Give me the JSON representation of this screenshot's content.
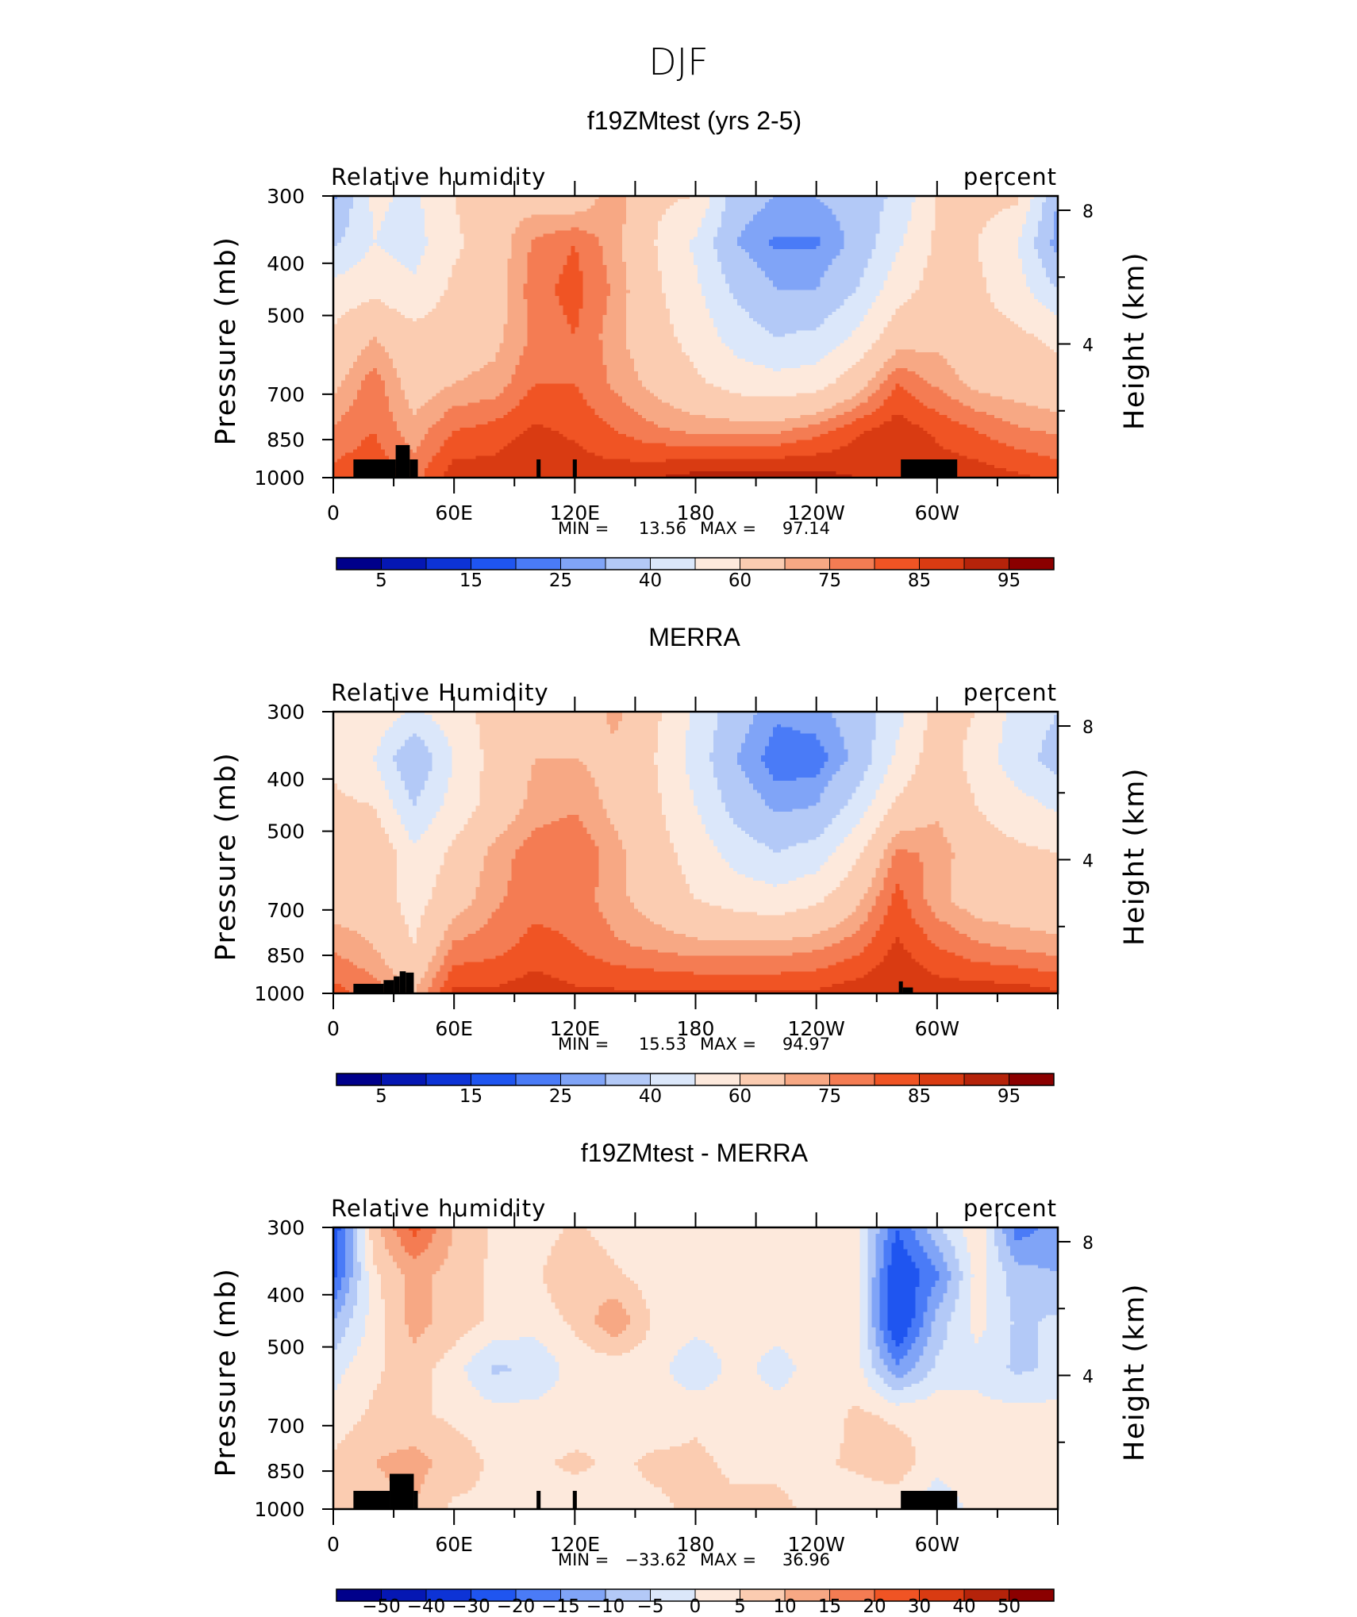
{
  "figure": {
    "title": "DJF"
  },
  "colors": {
    "abs_scale": [
      "#00008b",
      "#0517b3",
      "#0d33d6",
      "#1f55f0",
      "#4a7bf7",
      "#80a4f7",
      "#b3c9f7",
      "#dbe7fa",
      "#fde9dc",
      "#fbccb1",
      "#f7a884",
      "#f47c53",
      "#f05424",
      "#d93b12",
      "#b5230a",
      "#8b0000"
    ],
    "diff_scale": [
      "#00008b",
      "#0517b3",
      "#0d33d6",
      "#1f55f0",
      "#4a7bf7",
      "#80a4f7",
      "#b3c9f7",
      "#dbe7fa",
      "#fde9dc",
      "#fbccb1",
      "#f7a884",
      "#f47c53",
      "#f05424",
      "#d93b12",
      "#b5230a",
      "#8b0000"
    ],
    "topography": "#000000"
  },
  "chart_data": [
    {
      "type": "heatmap",
      "title": "f19ZMtest (yrs 2-5)",
      "left_label": "Relative humidity",
      "right_label": "percent",
      "ylabel": "Pressure (mb)",
      "y2label": "Height (km)",
      "xticks": [
        "0",
        "60E",
        "120E",
        "180",
        "120W",
        "60W"
      ],
      "xtick_lon": [
        0,
        60,
        120,
        180,
        240,
        300
      ],
      "xlim": [
        0,
        360
      ],
      "yticks": [
        "300",
        "400",
        "500",
        "700",
        "850",
        "1000"
      ],
      "ytick_values": [
        300,
        400,
        500,
        700,
        850,
        1000
      ],
      "ylim": [
        1000,
        300
      ],
      "y2ticks": [
        "8",
        "4"
      ],
      "y2tick_values": [
        8,
        4
      ],
      "stats_min_label": "MIN =",
      "stats_min": "13.56",
      "stats_max_label": "MAX =",
      "stats_max": "97.14",
      "colorbar_labels": [
        "5",
        "15",
        "25",
        "40",
        "60",
        "75",
        "85",
        "95"
      ],
      "field": [
        [
          28,
          52,
          48,
          60,
          68,
          66,
          64,
          74,
          62,
          60,
          34,
          30,
          30,
          34,
          42,
          60,
          64,
          62,
          30
        ],
        [
          38,
          50,
          46,
          58,
          66,
          76,
          80,
          72,
          60,
          48,
          30,
          24,
          24,
          32,
          48,
          62,
          60,
          50,
          26
        ],
        [
          54,
          58,
          52,
          62,
          66,
          78,
          82,
          74,
          62,
          52,
          38,
          30,
          30,
          40,
          56,
          64,
          62,
          54,
          40
        ],
        [
          62,
          70,
          64,
          66,
          68,
          76,
          80,
          72,
          64,
          56,
          46,
          40,
          42,
          52,
          66,
          68,
          64,
          62,
          58
        ],
        [
          68,
          78,
          66,
          70,
          72,
          80,
          80,
          74,
          68,
          62,
          56,
          54,
          56,
          66,
          80,
          74,
          68,
          66,
          64
        ],
        [
          76,
          80,
          72,
          80,
          82,
          86,
          84,
          80,
          76,
          74,
          74,
          74,
          78,
          84,
          88,
          84,
          80,
          76,
          74
        ],
        [
          82,
          84,
          78,
          88,
          88,
          90,
          88,
          88,
          90,
          92,
          93,
          93,
          92,
          90,
          90,
          88,
          88,
          86,
          84
        ]
      ],
      "topography": [
        [
          10,
          31,
          925,
          1000
        ],
        [
          31,
          38,
          870,
          1000
        ],
        [
          38,
          42,
          925,
          1000
        ],
        [
          101,
          103,
          925,
          1000
        ],
        [
          119,
          121,
          925,
          1000
        ],
        [
          282,
          310,
          925,
          1000
        ]
      ]
    },
    {
      "type": "heatmap",
      "title": "MERRA",
      "left_label": "Relative Humidity",
      "right_label": "percent",
      "ylabel": "Pressure (mb)",
      "y2label": "Height (km)",
      "xticks": [
        "0",
        "60E",
        "120E",
        "180",
        "120W",
        "60W"
      ],
      "xtick_lon": [
        0,
        60,
        120,
        180,
        240,
        300
      ],
      "xlim": [
        0,
        360
      ],
      "yticks": [
        "300",
        "400",
        "500",
        "700",
        "850",
        "1000"
      ],
      "ytick_values": [
        300,
        400,
        500,
        700,
        850,
        1000
      ],
      "ylim": [
        1000,
        300
      ],
      "y2ticks": [
        "8",
        "4"
      ],
      "y2tick_values": [
        8,
        4
      ],
      "stats_min_label": "MIN =",
      "stats_min": "15.53",
      "stats_max_label": "MAX =",
      "stats_max": "94.97",
      "colorbar_labels": [
        "5",
        "15",
        "25",
        "40",
        "60",
        "75",
        "85",
        "95"
      ],
      "field": [
        [
          56,
          58,
          48,
          56,
          64,
          66,
          64,
          72,
          62,
          48,
          34,
          26,
          28,
          34,
          46,
          64,
          60,
          46,
          40
        ],
        [
          58,
          50,
          30,
          50,
          64,
          70,
          70,
          68,
          60,
          46,
          30,
          22,
          22,
          32,
          52,
          66,
          56,
          44,
          36
        ],
        [
          62,
          60,
          40,
          54,
          64,
          72,
          74,
          68,
          62,
          50,
          36,
          28,
          30,
          44,
          62,
          68,
          60,
          54,
          48
        ],
        [
          64,
          70,
          52,
          62,
          72,
          78,
          80,
          72,
          64,
          56,
          46,
          40,
          44,
          58,
          76,
          74,
          64,
          62,
          60
        ],
        [
          66,
          66,
          56,
          66,
          74,
          78,
          78,
          72,
          66,
          60,
          56,
          54,
          58,
          68,
          82,
          72,
          66,
          64,
          64
        ],
        [
          74,
          70,
          60,
          76,
          78,
          82,
          80,
          76,
          74,
          72,
          72,
          72,
          74,
          78,
          86,
          80,
          76,
          74,
          72
        ],
        [
          82,
          78,
          70,
          86,
          86,
          88,
          86,
          86,
          86,
          86,
          86,
          86,
          86,
          88,
          90,
          88,
          88,
          88,
          86
        ]
      ],
      "topography": [
        [
          10,
          25,
          960,
          1000
        ],
        [
          25,
          30,
          945,
          1000
        ],
        [
          30,
          33,
          930,
          1000
        ],
        [
          33,
          36,
          910,
          1000
        ],
        [
          36,
          40,
          915,
          1000
        ],
        [
          281,
          283,
          950,
          1000
        ],
        [
          283,
          288,
          975,
          1000
        ]
      ]
    },
    {
      "type": "heatmap",
      "title": "f19ZMtest - MERRA",
      "left_label": "Relative humidity",
      "right_label": "percent",
      "ylabel": "Pressure (mb)",
      "y2label": "Height (km)",
      "xticks": [
        "0",
        "60E",
        "120E",
        "180",
        "120W",
        "60W"
      ],
      "xtick_lon": [
        0,
        60,
        120,
        180,
        240,
        300
      ],
      "xlim": [
        0,
        360
      ],
      "yticks": [
        "300",
        "400",
        "500",
        "700",
        "850",
        "1000"
      ],
      "ytick_values": [
        300,
        400,
        500,
        700,
        850,
        1000
      ],
      "ylim": [
        1000,
        300
      ],
      "y2ticks": [
        "8",
        "4"
      ],
      "y2tick_values": [
        8,
        4
      ],
      "stats_min_label": "MIN =",
      "stats_min": "−33.62",
      "stats_max_label": "MAX =",
      "stats_max": "36.96",
      "colorbar_labels": [
        "−50",
        "−40",
        "−30",
        "−20",
        "−15",
        "−10",
        "−5",
        "0",
        "5",
        "10",
        "15",
        "20",
        "30",
        "40",
        "50"
      ],
      "field": [
        [
          -25,
          8,
          22,
          10,
          4,
          2,
          6,
          2,
          2,
          4,
          2,
          2,
          2,
          2,
          -20,
          -6,
          4,
          -18,
          -12
        ],
        [
          -22,
          4,
          12,
          8,
          4,
          4,
          10,
          6,
          2,
          2,
          2,
          2,
          2,
          2,
          -26,
          -16,
          2,
          -8,
          -10
        ],
        [
          -10,
          2,
          12,
          8,
          4,
          2,
          6,
          14,
          4,
          2,
          2,
          2,
          2,
          2,
          -28,
          -8,
          2,
          -6,
          -4
        ],
        [
          -2,
          4,
          8,
          2,
          -6,
          -4,
          2,
          2,
          2,
          -4,
          2,
          -2,
          2,
          2,
          -14,
          -4,
          -2,
          -6,
          -4
        ],
        [
          2,
          6,
          6,
          4,
          2,
          2,
          2,
          4,
          2,
          4,
          2,
          2,
          2,
          6,
          4,
          4,
          2,
          2,
          2
        ],
        [
          6,
          10,
          12,
          8,
          4,
          4,
          6,
          4,
          6,
          6,
          4,
          4,
          4,
          6,
          8,
          2,
          4,
          2,
          2
        ],
        [
          6,
          8,
          10,
          4,
          4,
          4,
          2,
          4,
          4,
          6,
          6,
          6,
          4,
          2,
          2,
          -4,
          2,
          4,
          4
        ]
      ],
      "topography": [
        [
          10,
          28,
          925,
          1000
        ],
        [
          28,
          40,
          860,
          1000
        ],
        [
          40,
          42,
          925,
          1000
        ],
        [
          101,
          103,
          925,
          1000
        ],
        [
          119,
          121,
          925,
          1000
        ],
        [
          282,
          310,
          925,
          1000
        ]
      ]
    }
  ]
}
